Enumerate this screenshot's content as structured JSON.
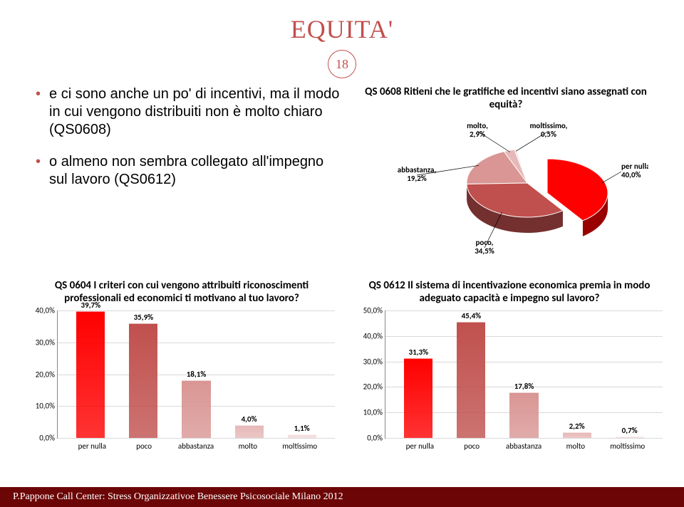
{
  "title": "EQUITA'",
  "page_number": "18",
  "bullets": [
    "e ci sono anche un po' di incentivi, ma il modo in cui vengono distribuiti non è molto chiaro (QS0608)",
    "o almeno non sembra collegato all'impegno sul lavoro (QS0612)"
  ],
  "pie": {
    "title": "QS 0608 Ritieni che le gratifiche ed incentivi siano assegnati con equità?",
    "slices": [
      {
        "label": "per nulla,",
        "value": "40,0%",
        "pct": 40.0,
        "color": "#ff0000"
      },
      {
        "label": "poco,",
        "value": "34,5%",
        "pct": 34.5,
        "color": "#c0504d"
      },
      {
        "label": "abbastanza,",
        "value": "19,2%",
        "pct": 19.2,
        "color": "#d99694"
      },
      {
        "label": "molto,",
        "value": "2,9%",
        "pct": 2.9,
        "color": "#e6b9b8"
      },
      {
        "label": "moltissimo,",
        "value": "0,5%",
        "pct": 0.5,
        "color": "#f2dcdb"
      }
    ]
  },
  "bar1": {
    "title": "QS 0604 I criteri con cui vengono attribuiti riconoscimenti professionali ed economici ti motivano al tuo lavoro?",
    "ymax": 40,
    "ytick_step": 10,
    "categories": [
      "per nulla",
      "poco",
      "abbastanza",
      "molto",
      "moltissimo"
    ],
    "values": [
      39.7,
      35.9,
      18.1,
      4.0,
      1.1
    ],
    "value_labels": [
      "39,7%",
      "35,9%",
      "18,1%",
      "4,0%",
      "1,1%"
    ],
    "colors": [
      "#ff0000",
      "#c0504d",
      "#d99694",
      "#e6b9b8",
      "#f2dcdb"
    ]
  },
  "bar2": {
    "title": "QS 0612 Il sistema di incentivazione economica premia in modo adeguato capacità e impegno sul lavoro?",
    "ymax": 50,
    "ytick_step": 10,
    "categories": [
      "per nulla",
      "poco",
      "abbastanza",
      "molto",
      "moltissimo"
    ],
    "values": [
      31.3,
      45.4,
      17.8,
      2.2,
      0.7
    ],
    "value_labels": [
      "31,3%",
      "45,4%",
      "17,8%",
      "2,2%",
      "0,7%"
    ],
    "colors": [
      "#ff0000",
      "#c0504d",
      "#d99694",
      "#e6b9b8",
      "#f2dcdb"
    ]
  },
  "footer": "P.Pappone Call Center: Stress Organizzativoe Benessere Psicosociale Milano 2012",
  "style": {
    "title_color": "#c0504d",
    "footer_bg": "#6c0606",
    "grid_color": "#d9d9d9"
  }
}
